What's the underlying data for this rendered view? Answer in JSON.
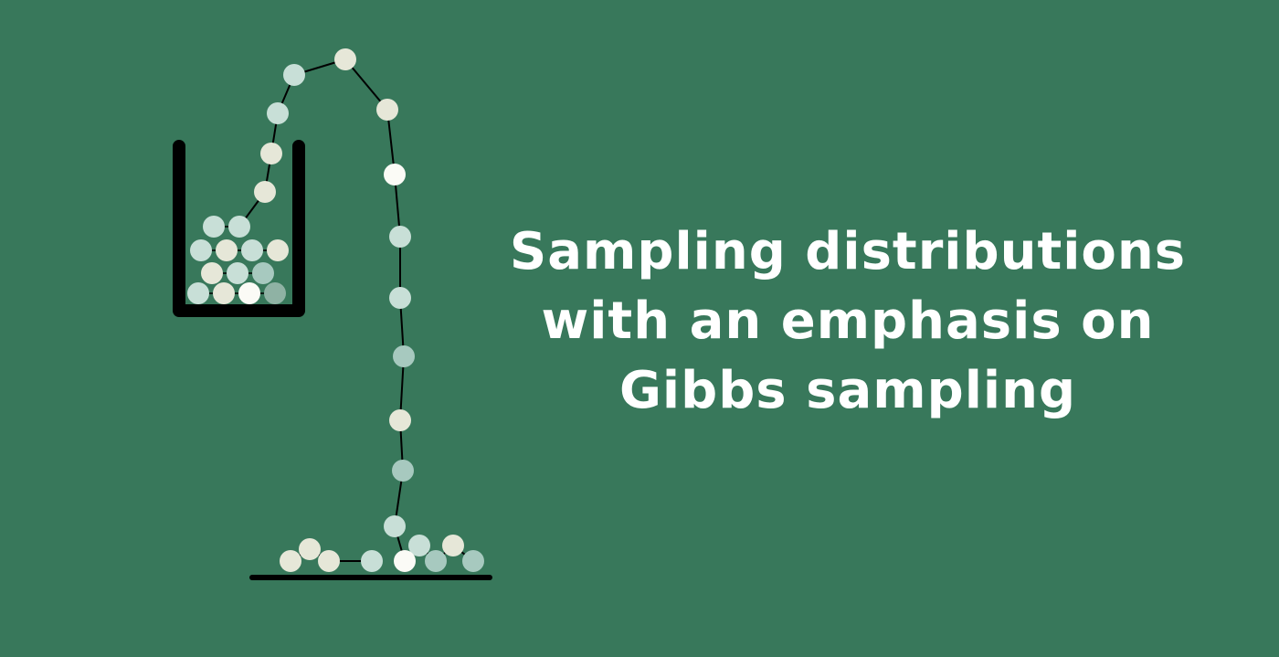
{
  "background_color": "#38785b",
  "ink_color": "#000000",
  "ball_colors": {
    "cream": "#e6e7d8",
    "mint": "#c8dfd7",
    "sage": "#a7c9bf",
    "white": "#fbfbf6",
    "muted": "#8fb2a4"
  },
  "title": {
    "lines": [
      "Sampling distributions",
      "with an emphasis on",
      "Gibbs sampling"
    ],
    "color": "#ffffff"
  },
  "illustration": {
    "elements": [
      "cup-icon",
      "ball-chain",
      "ground-line",
      "ball-pile"
    ]
  }
}
